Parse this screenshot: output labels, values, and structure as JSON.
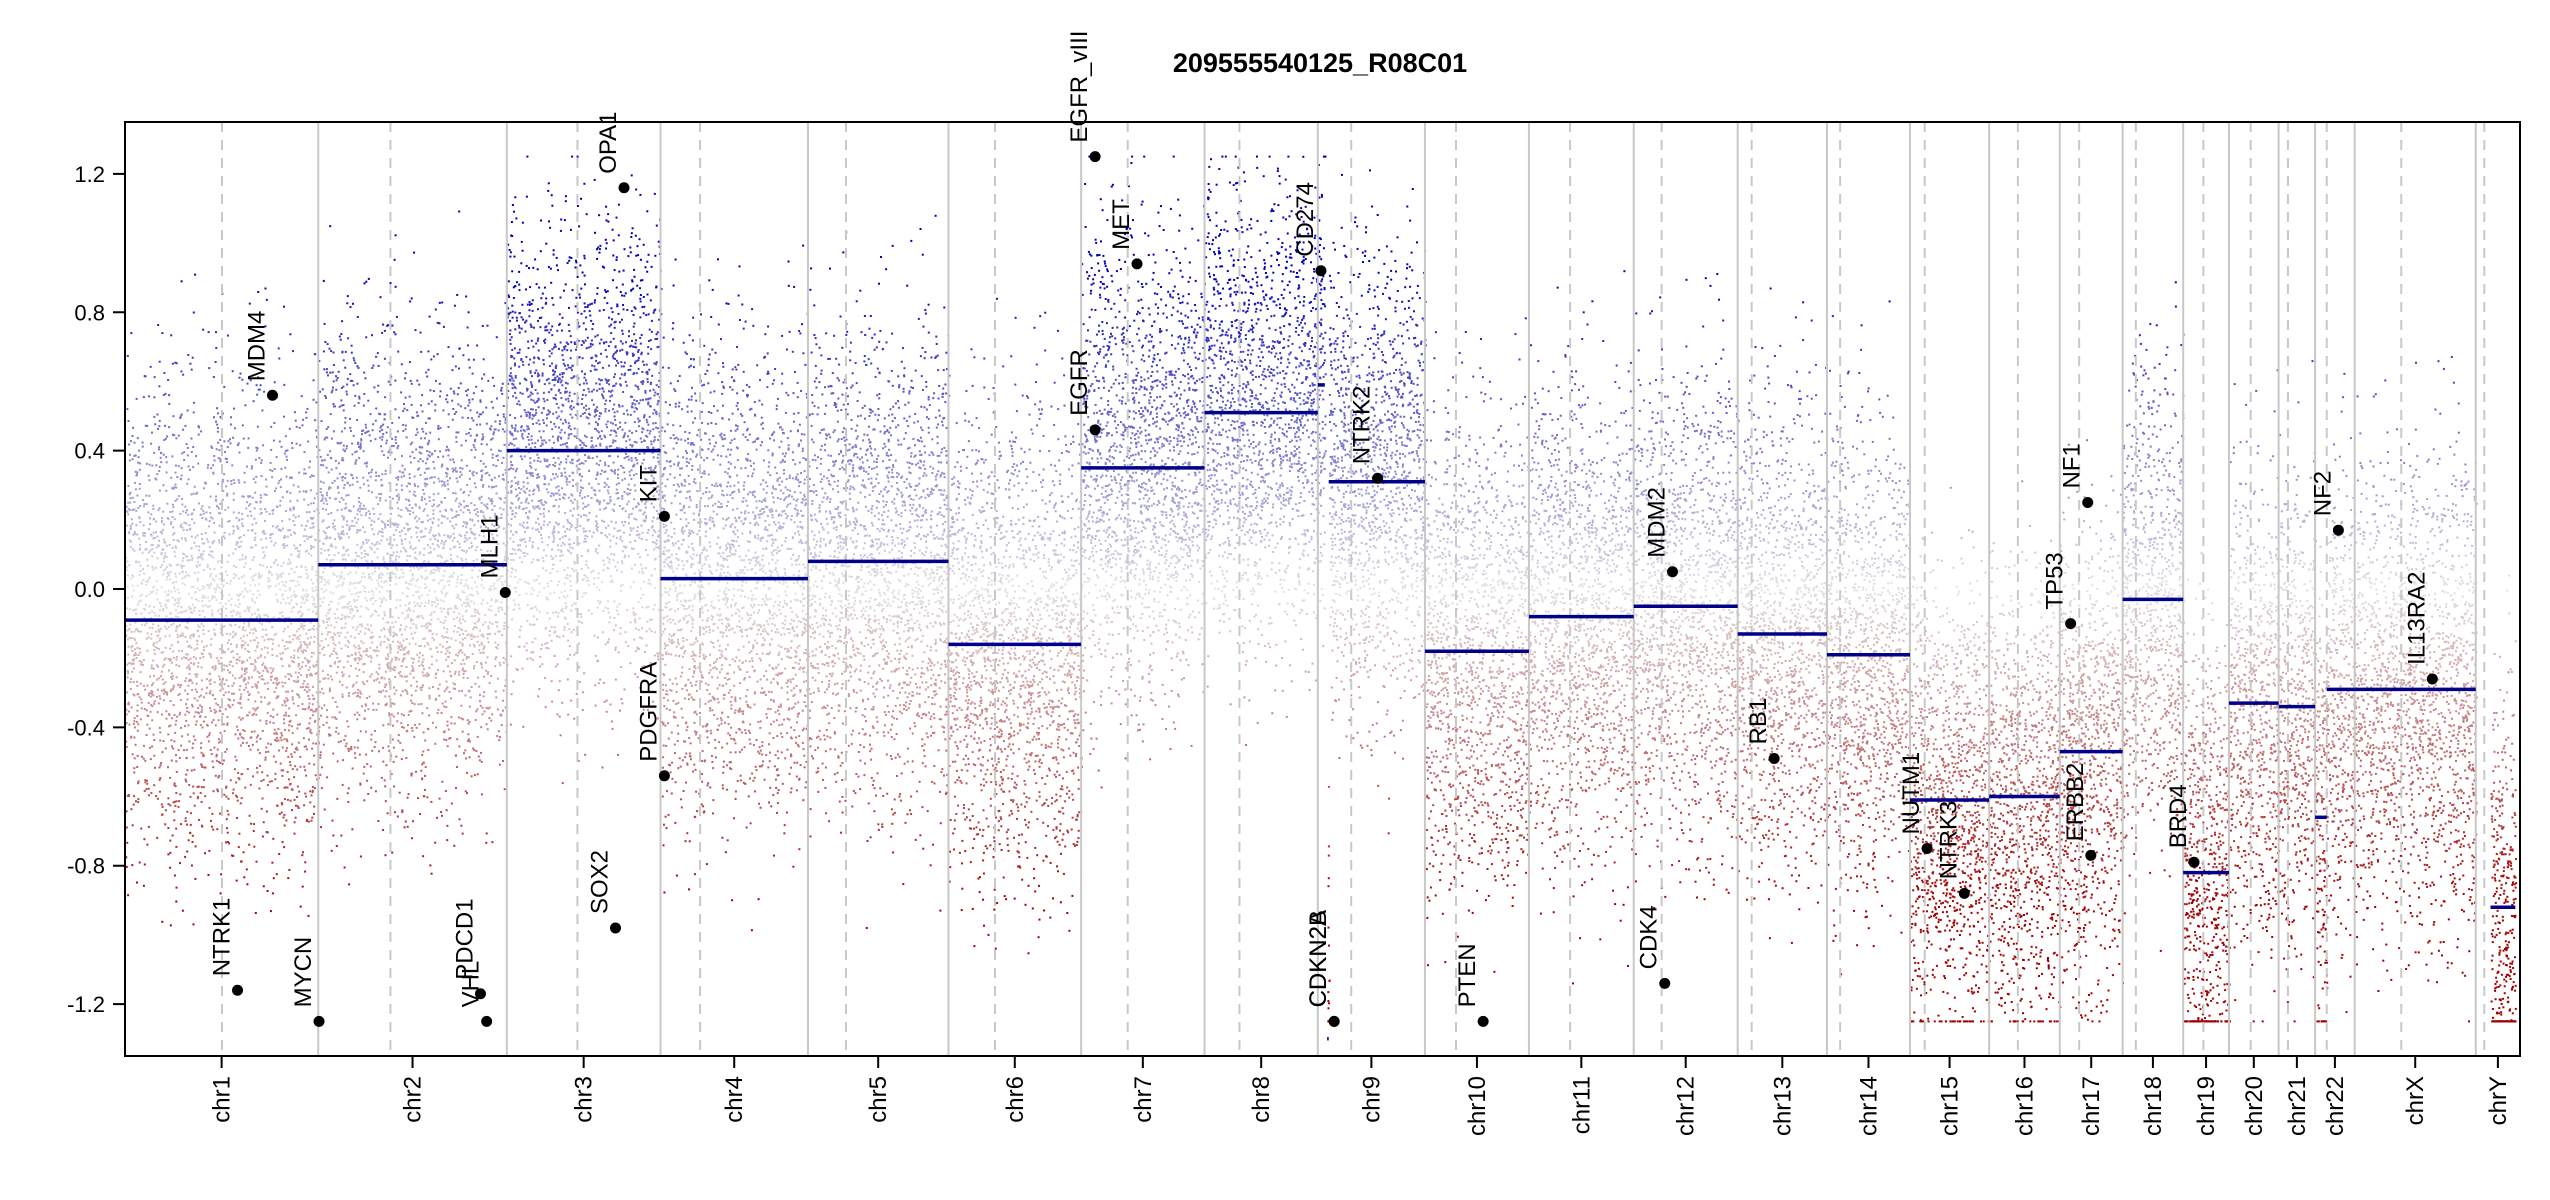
{
  "chart_data": {
    "type": "scatter",
    "title": "209555540125_R08C01",
    "xlabel": "",
    "ylabel": "",
    "ylim": [
      -1.35,
      1.35
    ],
    "clip": [
      -1.25,
      1.25
    ],
    "y_ticks": [
      -1.2,
      -0.8,
      -0.4,
      0.0,
      0.4,
      0.8,
      1.2
    ],
    "y_tick_labels": [
      "-1.2",
      "-0.8",
      "-0.4",
      "0.0",
      "0.4",
      "0.8",
      "1.2"
    ],
    "grid": false,
    "colors": {
      "gain": "#0000b4",
      "loss": "#a00000",
      "segment": "#00008b",
      "chr_border": "#c8c8c8",
      "centromere": "#c8c8c8",
      "gene_point": "#000000"
    },
    "chromosomes": [
      {
        "name": "chr1",
        "start": 0,
        "end": 249,
        "centromere": 125
      },
      {
        "name": "chr2",
        "start": 249,
        "end": 492,
        "centromere": 342
      },
      {
        "name": "chr3",
        "start": 492,
        "end": 690,
        "centromere": 583
      },
      {
        "name": "chr4",
        "start": 690,
        "end": 880,
        "centromere": 741
      },
      {
        "name": "chr5",
        "start": 880,
        "end": 1061,
        "centromere": 929
      },
      {
        "name": "chr6",
        "start": 1061,
        "end": 1232,
        "centromere": 1121
      },
      {
        "name": "chr7",
        "start": 1232,
        "end": 1391,
        "centromere": 1292
      },
      {
        "name": "chr8",
        "start": 1391,
        "end": 1537,
        "centromere": 1436
      },
      {
        "name": "chr9",
        "start": 1537,
        "end": 1675,
        "centromere": 1580
      },
      {
        "name": "chr10",
        "start": 1675,
        "end": 1809,
        "centromere": 1715
      },
      {
        "name": "chr11",
        "start": 1809,
        "end": 1944,
        "centromere": 1862
      },
      {
        "name": "chr12",
        "start": 1944,
        "end": 2078,
        "centromere": 1980
      },
      {
        "name": "chr13",
        "start": 2078,
        "end": 2193,
        "centromere": 2096
      },
      {
        "name": "chr14",
        "start": 2193,
        "end": 2300,
        "centromere": 2210
      },
      {
        "name": "chr15",
        "start": 2300,
        "end": 2402,
        "centromere": 2319
      },
      {
        "name": "chr16",
        "start": 2402,
        "end": 2493,
        "centromere": 2439
      },
      {
        "name": "chr17",
        "start": 2493,
        "end": 2574,
        "centromere": 2518
      },
      {
        "name": "chr18",
        "start": 2574,
        "end": 2652,
        "centromere": 2591
      },
      {
        "name": "chr19",
        "start": 2652,
        "end": 2711,
        "centromere": 2678
      },
      {
        "name": "chr20",
        "start": 2711,
        "end": 2775,
        "centromere": 2739
      },
      {
        "name": "chr21",
        "start": 2775,
        "end": 2822,
        "centromere": 2787
      },
      {
        "name": "chr22",
        "start": 2822,
        "end": 2873,
        "centromere": 2837
      },
      {
        "name": "chrX",
        "start": 2873,
        "end": 3029,
        "centromere": 2933
      },
      {
        "name": "chrY",
        "start": 3029,
        "end": 3086,
        "centromere": 3040
      }
    ],
    "segments": [
      {
        "chr": "chr1",
        "x0": 0,
        "x1": 249,
        "y": -0.09
      },
      {
        "chr": "chr2",
        "x0": 249,
        "x1": 492,
        "y": 0.07
      },
      {
        "chr": "chr3",
        "x0": 492,
        "x1": 690,
        "y": 0.4
      },
      {
        "chr": "chr4",
        "x0": 690,
        "x1": 880,
        "y": 0.03
      },
      {
        "chr": "chr5",
        "x0": 880,
        "x1": 1061,
        "y": 0.08
      },
      {
        "chr": "chr6",
        "x0": 1061,
        "x1": 1232,
        "y": -0.16
      },
      {
        "chr": "chr7",
        "x0": 1232,
        "x1": 1391,
        "y": 0.35
      },
      {
        "chr": "chr8",
        "x0": 1391,
        "x1": 1537,
        "y": 0.51
      },
      {
        "chr": "chr9",
        "x0": 1537,
        "x1": 1546,
        "y": 0.59
      },
      {
        "chr": "chr9",
        "x0": 1549,
        "x1": 1551,
        "y": -1.3
      },
      {
        "chr": "chr9",
        "x0": 1551,
        "x1": 1675,
        "y": 0.31
      },
      {
        "chr": "chr10",
        "x0": 1675,
        "x1": 1809,
        "y": -0.18
      },
      {
        "chr": "chr11",
        "x0": 1809,
        "x1": 1944,
        "y": -0.08
      },
      {
        "chr": "chr12",
        "x0": 1944,
        "x1": 2078,
        "y": -0.05
      },
      {
        "chr": "chr13",
        "x0": 2078,
        "x1": 2193,
        "y": -0.13
      },
      {
        "chr": "chr14",
        "x0": 2193,
        "x1": 2300,
        "y": -0.19
      },
      {
        "chr": "chr15",
        "x0": 2300,
        "x1": 2402,
        "y": -0.61
      },
      {
        "chr": "chr16",
        "x0": 2402,
        "x1": 2493,
        "y": -0.6
      },
      {
        "chr": "chr17",
        "x0": 2493,
        "x1": 2574,
        "y": -0.47
      },
      {
        "chr": "chr18",
        "x0": 2574,
        "x1": 2652,
        "y": -0.03
      },
      {
        "chr": "chr19",
        "x0": 2652,
        "x1": 2711,
        "y": -0.82
      },
      {
        "chr": "chr20",
        "x0": 2711,
        "x1": 2775,
        "y": -0.33
      },
      {
        "chr": "chr21",
        "x0": 2775,
        "x1": 2822,
        "y": -0.34
      },
      {
        "chr": "chr22",
        "x0": 2822,
        "x1": 2837,
        "y": -0.66
      },
      {
        "chr": "chr22",
        "x0": 2837,
        "x1": 2873,
        "y": -0.29
      },
      {
        "chr": "chrX",
        "x0": 2873,
        "x1": 3029,
        "y": -0.29
      },
      {
        "chr": "chrY",
        "x0": 3048,
        "x1": 3080,
        "y": -0.92
      }
    ],
    "genes": [
      {
        "name": "NTRK1",
        "x": 145,
        "y": -1.16
      },
      {
        "name": "MDM4",
        "x": 190,
        "y": 0.56
      },
      {
        "name": "MYCN",
        "x": 250,
        "y": -1.25
      },
      {
        "name": "PDCD1",
        "x": 458,
        "y": -1.17
      },
      {
        "name": "VHL",
        "x": 466,
        "y": -1.25
      },
      {
        "name": "MLH1",
        "x": 490,
        "y": -0.01
      },
      {
        "name": "SOX2",
        "x": 632,
        "y": -0.98
      },
      {
        "name": "OPA1",
        "x": 643,
        "y": 1.16
      },
      {
        "name": "KIT",
        "x": 695,
        "y": 0.21
      },
      {
        "name": "PDGFRA",
        "x": 695,
        "y": -0.54
      },
      {
        "name": "EGFR",
        "x": 1250,
        "y": 0.46
      },
      {
        "name": "EGFR_vIII",
        "x": 1250,
        "y": 1.25
      },
      {
        "name": "MET",
        "x": 1304,
        "y": 0.94
      },
      {
        "name": "CD274",
        "x": 1541,
        "y": 0.92
      },
      {
        "name": "CDKN2A",
        "x": 1558,
        "y": -1.25
      },
      {
        "name": "CDKN2B",
        "x": 1558,
        "y": -1.25
      },
      {
        "name": "NTRK2",
        "x": 1614,
        "y": 0.32
      },
      {
        "name": "PTEN",
        "x": 1750,
        "y": -1.25
      },
      {
        "name": "CDK4",
        "x": 1984,
        "y": -1.14
      },
      {
        "name": "MDM2",
        "x": 1994,
        "y": 0.05
      },
      {
        "name": "RB1",
        "x": 2125,
        "y": -0.49
      },
      {
        "name": "NUTM1",
        "x": 2322,
        "y": -0.75
      },
      {
        "name": "NTRK3",
        "x": 2370,
        "y": -0.88
      },
      {
        "name": "TP53",
        "x": 2507,
        "y": -0.1
      },
      {
        "name": "NF1",
        "x": 2529,
        "y": 0.25
      },
      {
        "name": "ERBB2",
        "x": 2533,
        "y": -0.77
      },
      {
        "name": "BRD4",
        "x": 2666,
        "y": -0.79
      },
      {
        "name": "NF2",
        "x": 2852,
        "y": 0.17
      },
      {
        "name": "IL13RA2",
        "x": 2973,
        "y": -0.26
      }
    ]
  }
}
